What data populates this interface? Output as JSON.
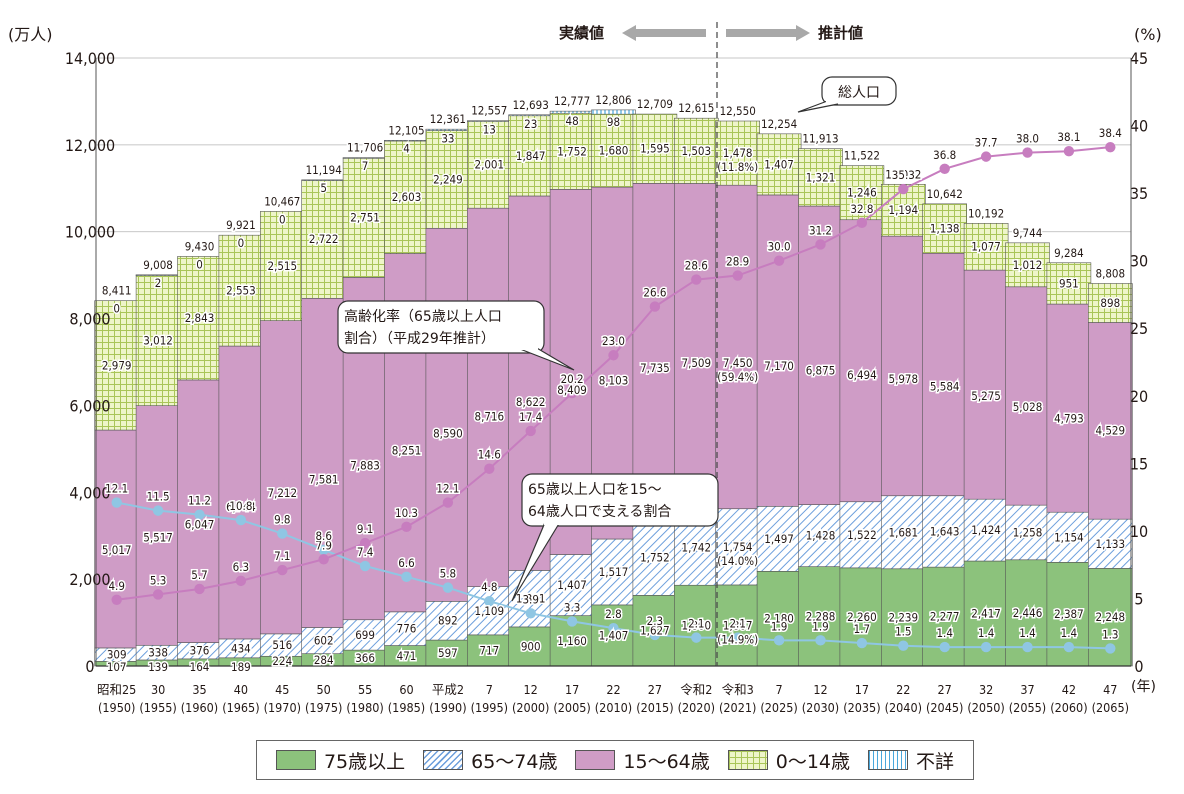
{
  "chart_data": {
    "type": "stacked-bar+line",
    "y_left_label": "(万人)",
    "y_right_label": "(%)",
    "x_unit_label": "(年)",
    "ylim_left": [
      0,
      14000
    ],
    "ylim_right": [
      0,
      45
    ],
    "y_left_ticks": [
      "0",
      "2,000",
      "4,000",
      "6,000",
      "8,000",
      "10,000",
      "12,000",
      "14,000"
    ],
    "y_right_ticks": [
      "0",
      "5",
      "10",
      "15",
      "20",
      "25",
      "30",
      "35",
      "40",
      "45"
    ],
    "header_actual": "実績値",
    "header_estimate": "推計値",
    "callout_total": "総人口",
    "callout_aging_line1": "高齢化率（65歳以上人口",
    "callout_aging_line2": "割合）（平成29年推計）",
    "callout_support_line1": "65歳以上人口を15～",
    "callout_support_line2": "64歳人口で支える割合",
    "categories": [
      {
        "era": "昭和25",
        "year": "(1950)"
      },
      {
        "era": "30",
        "year": "(1955)"
      },
      {
        "era": "35",
        "year": "(1960)"
      },
      {
        "era": "40",
        "year": "(1965)"
      },
      {
        "era": "45",
        "year": "(1970)"
      },
      {
        "era": "50",
        "year": "(1975)"
      },
      {
        "era": "55",
        "year": "(1980)"
      },
      {
        "era": "60",
        "year": "(1985)"
      },
      {
        "era": "平成2",
        "year": "(1990)"
      },
      {
        "era": "7",
        "year": "(1995)"
      },
      {
        "era": "12",
        "year": "(2000)"
      },
      {
        "era": "17",
        "year": "(2005)"
      },
      {
        "era": "22",
        "year": "(2010)"
      },
      {
        "era": "27",
        "year": "(2015)"
      },
      {
        "era": "令和2",
        "year": "(2020)"
      },
      {
        "era": "令和3",
        "year": "(2021)"
      },
      {
        "era": "7",
        "year": "(2025)"
      },
      {
        "era": "12",
        "year": "(2030)"
      },
      {
        "era": "17",
        "year": "(2035)"
      },
      {
        "era": "22",
        "year": "(2040)"
      },
      {
        "era": "27",
        "year": "(2045)"
      },
      {
        "era": "32",
        "year": "(2050)"
      },
      {
        "era": "37",
        "year": "(2055)"
      },
      {
        "era": "42",
        "year": "(2060)"
      },
      {
        "era": "47",
        "year": "(2065)"
      }
    ],
    "series": [
      {
        "name": "75歳以上",
        "color": "#8cc27c",
        "values": [
          107,
          139,
          164,
          189,
          224,
          284,
          366,
          471,
          597,
          717,
          900,
          1160,
          1407,
          1627,
          1860,
          1867,
          2180,
          2288,
          2260,
          2239,
          2277,
          2417,
          2446,
          2387,
          2248
        ],
        "labels": [
          "107",
          "139",
          "164",
          "189",
          "224",
          "284",
          "366",
          "471",
          "597",
          "717",
          "900",
          "1,160",
          "1,407",
          "1,627",
          "1,860",
          "1,867",
          "2,180",
          "2,288",
          "2,260",
          "2,239",
          "2,277",
          "2,417",
          "2,446",
          "2,387",
          "2,248"
        ]
      },
      {
        "name": "65～74歳",
        "color": "#bcd3f0",
        "values": [
          309,
          338,
          376,
          434,
          516,
          602,
          699,
          776,
          892,
          1109,
          1301,
          1407,
          1517,
          1752,
          1742,
          1754,
          1497,
          1428,
          1522,
          1681,
          1643,
          1424,
          1258,
          1154,
          1133
        ],
        "labels": [
          "309",
          "338",
          "376",
          "434",
          "516",
          "602",
          "699",
          "776",
          "892",
          "1,109",
          "1,301",
          "1,407",
          "1,517",
          "1,752",
          "1,742",
          "1,754",
          "1,497",
          "1,428",
          "1,522",
          "1,681",
          "1,643",
          "1,424",
          "1,258",
          "1,154",
          "1,133"
        ]
      },
      {
        "name": "15～64歳",
        "color": "#cf9cc6",
        "values": [
          5017,
          5517,
          6047,
          6744,
          7212,
          7581,
          7883,
          8251,
          8590,
          8716,
          8622,
          8409,
          8103,
          7735,
          7509,
          7450,
          7170,
          6875,
          6494,
          5978,
          5584,
          5275,
          5028,
          4793,
          4529
        ],
        "labels": [
          "5,017",
          "5,517",
          "6,047",
          "6,744",
          "7,212",
          "7,581",
          "7,883",
          "8,251",
          "8,590",
          "8,716",
          "8,622",
          "8,409",
          "8,103",
          "7,735",
          "7,509",
          "7,450",
          "7,170",
          "6,875",
          "6,494",
          "5,978",
          "5,584",
          "5,275",
          "5,028",
          "4,793",
          "4,529"
        ]
      },
      {
        "name": "0～14歳",
        "color": "#e8f0c4",
        "values": [
          2979,
          3012,
          2843,
          2553,
          2515,
          2722,
          2751,
          2603,
          2249,
          2001,
          1847,
          1752,
          1680,
          1595,
          1503,
          1478,
          1407,
          1321,
          1246,
          1194,
          1138,
          1077,
          1012,
          951,
          898
        ],
        "labels": [
          "2,979",
          "3,012",
          "2,843",
          "2,553",
          "2,515",
          "2,722",
          "2,751",
          "2,603",
          "2,249",
          "2,001",
          "1,847",
          "1,752",
          "1,680",
          "1,595",
          "1,503",
          "1,478",
          "1,407",
          "1,321",
          "1,246",
          "1,194",
          "1,138",
          "1,077",
          "1,012",
          "951",
          "898"
        ]
      },
      {
        "name": "不詳",
        "color": "#b3def2",
        "values": [
          0,
          2,
          0,
          0,
          0,
          5,
          7,
          4,
          33,
          13,
          23,
          48,
          98,
          0,
          0,
          0,
          0,
          0,
          0,
          0,
          0,
          0,
          0,
          0,
          0
        ],
        "labels": [
          "0",
          "2",
          "0",
          "0",
          "0",
          "5",
          "7",
          "4",
          "33",
          "13",
          "23",
          "48",
          "98",
          "",
          "",
          "",
          "",
          "",
          "",
          "",
          "",
          "",
          "",
          "",
          ""
        ]
      }
    ],
    "totals": [
      "8,411",
      "9,008",
      "9,430",
      "9,921",
      "10,467",
      "11,194",
      "11,706",
      "12,105",
      "12,361",
      "12,557",
      "12,693",
      "12,777",
      "12,806",
      "12,709",
      "12,615",
      "12,550",
      "12,254",
      "11,913",
      "11,522",
      "11,092",
      "10,642",
      "10,192",
      "9,744",
      "9,284",
      "8,808"
    ],
    "total_values": [
      8411,
      9008,
      9430,
      9921,
      10467,
      11194,
      11706,
      12105,
      12361,
      12557,
      12693,
      12777,
      12806,
      12709,
      12615,
      12550,
      12254,
      11913,
      11522,
      11092,
      10642,
      10192,
      9744,
      9284,
      8808
    ],
    "extra_pct_2021": {
      "young_old": "(14.0%)",
      "old_old": "(14.9%)",
      "working": "(59.4%)",
      "child": "(11.8%)"
    },
    "aging_rate": {
      "name": "高齢化率（65歳以上人口割合）（平成29年推計）",
      "color": "#c77dbf",
      "values": [
        4.9,
        5.3,
        5.7,
        6.3,
        7.1,
        7.9,
        9.1,
        10.3,
        12.1,
        14.6,
        17.4,
        20.2,
        23.0,
        26.6,
        28.6,
        28.9,
        30.0,
        31.2,
        32.8,
        35.3,
        36.8,
        37.7,
        38.0,
        38.1,
        38.4
      ],
      "labels": [
        "4.9",
        "5.3",
        "5.7",
        "6.3",
        "7.1",
        "7.9",
        "9.1",
        "10.3",
        "12.1",
        "14.6",
        "17.4",
        "20.2",
        "23.0",
        "26.6",
        "28.6",
        "28.9",
        "30.0",
        "31.2",
        "32.8",
        "35.3",
        "36.8",
        "37.7",
        "38.0",
        "38.1",
        "38.4"
      ]
    },
    "support_ratio": {
      "name": "65歳以上人口を15～64歳人口で支える割合",
      "color": "#8fc6e3",
      "values": [
        12.1,
        11.5,
        11.2,
        10.8,
        9.8,
        8.6,
        7.4,
        6.6,
        5.8,
        4.8,
        3.9,
        3.3,
        2.8,
        2.3,
        2.1,
        2.1,
        1.9,
        1.9,
        1.7,
        1.5,
        1.4,
        1.4,
        1.4,
        1.4,
        1.3
      ],
      "labels": [
        "12.1",
        "11.5",
        "11.2",
        "10.8",
        "9.8",
        "8.6",
        "7.4",
        "6.6",
        "5.8",
        "4.8",
        "3.9",
        "3.3",
        "2.8",
        "2.3",
        "2.1",
        "2.1",
        "1.9",
        "1.9",
        "1.7",
        "1.5",
        "1.4",
        "1.4",
        "1.4",
        "1.4",
        "1.3"
      ]
    }
  },
  "legend": [
    {
      "label": "75歳以上",
      "color": "#8cc27c"
    },
    {
      "label": "65～74歳",
      "color": "#bcd3f0"
    },
    {
      "label": "15～64歳",
      "color": "#cf9cc6"
    },
    {
      "label": "0～14歳",
      "color": "#e8f0c4"
    },
    {
      "label": "不詳",
      "color": "#b3def2"
    }
  ]
}
